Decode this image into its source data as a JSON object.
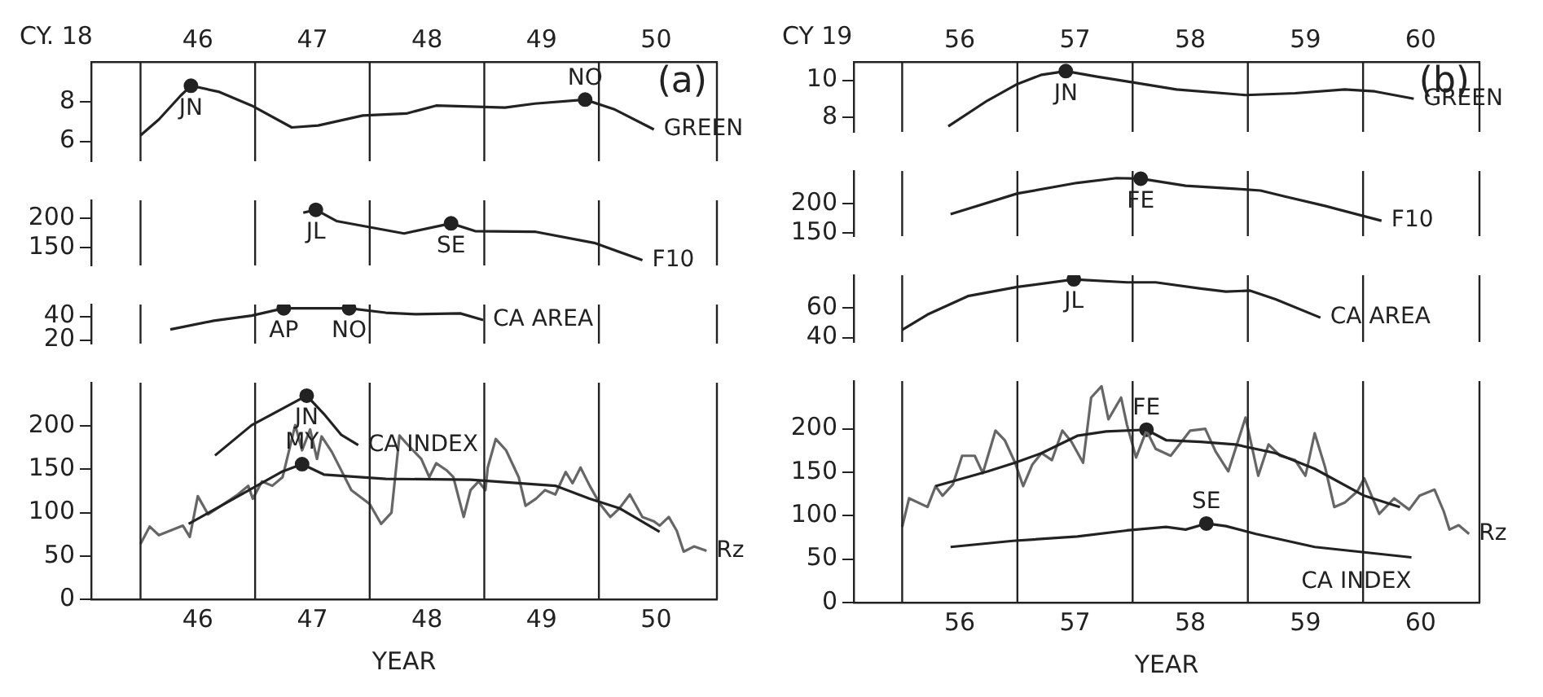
{
  "chart_data": [
    {
      "type": "line",
      "title": "(a)",
      "annotations": [
        "CY. 18"
      ],
      "tick_labels": "y",
      "xlim": [
        45.57,
        51.03
      ],
      "x2lim": [
        45.57,
        51.03
      ],
      "x2ticks": [
        {
          "value": 46.5,
          "label": "46"
        },
        {
          "value": 47.5,
          "label": "47"
        },
        {
          "value": 48.5,
          "label": "48"
        },
        {
          "value": 49.5,
          "label": "49"
        },
        {
          "value": 50.5,
          "label": "50"
        }
      ],
      "ylim": [
        5,
        10
      ],
      "yticks": [
        6,
        8
      ],
      "ref_lines": [
        {
          "axis": "x",
          "value": 46
        },
        {
          "axis": "x",
          "value": 47
        },
        {
          "axis": "x",
          "value": 48
        },
        {
          "axis": "x",
          "value": 49
        },
        {
          "axis": "x",
          "value": 50
        }
      ],
      "series": [
        {
          "name": "GREEN",
          "color": "#222222",
          "x": [
            46.0,
            46.16,
            46.35,
            46.44,
            46.68,
            46.97,
            47.32,
            47.55,
            47.94,
            48.32,
            48.58,
            49.18,
            49.44,
            49.88,
            50.14,
            50.48
          ],
          "values": [
            6.3,
            7.1,
            8.3,
            8.8,
            8.5,
            7.8,
            6.7,
            6.8,
            7.3,
            7.4,
            7.8,
            7.7,
            7.9,
            8.1,
            7.6,
            6.6
          ]
        },
        {
          "type": "scatter",
          "name": "JN",
          "color": "#222222",
          "x": [
            46.44
          ],
          "values": [
            8.8
          ]
        },
        {
          "type": "scatter",
          "name": "NO",
          "color": "#222222",
          "x": [
            49.88
          ],
          "values": [
            8.1
          ]
        }
      ]
    },
    {
      "type": "line",
      "tick_labels": "y",
      "xlim": [
        45.57,
        51.03
      ],
      "ylim": [
        120,
        230
      ],
      "yticks": [
        150,
        200
      ],
      "ref_lines": [
        {
          "axis": "x",
          "value": 46
        },
        {
          "axis": "x",
          "value": 47
        },
        {
          "axis": "x",
          "value": 48
        },
        {
          "axis": "x",
          "value": 49
        },
        {
          "axis": "x",
          "value": 50
        }
      ],
      "series": [
        {
          "name": "F10",
          "color": "#222222",
          "x": [
            47.42,
            47.53,
            47.71,
            48.3,
            48.71,
            48.92,
            49.44,
            49.96,
            50.38
          ],
          "values": [
            209,
            214,
            195,
            174,
            191,
            178,
            177,
            158,
            129
          ]
        },
        {
          "type": "scatter",
          "name": "JL",
          "color": "#222222",
          "x": [
            47.53
          ],
          "values": [
            214
          ]
        },
        {
          "type": "scatter",
          "name": "SE",
          "color": "#222222",
          "x": [
            48.71
          ],
          "values": [
            191
          ]
        }
      ]
    },
    {
      "type": "line",
      "tick_labels": "y",
      "xlim": [
        45.57,
        51.03
      ],
      "ylim": [
        17,
        50
      ],
      "yticks": [
        20,
        40
      ],
      "ref_lines": [
        {
          "axis": "x",
          "value": 46
        },
        {
          "axis": "x",
          "value": 47
        },
        {
          "axis": "x",
          "value": 48
        },
        {
          "axis": "x",
          "value": 49
        },
        {
          "axis": "x",
          "value": 50
        }
      ],
      "series": [
        {
          "name": "CA AREA",
          "color": "#222222",
          "x": [
            46.26,
            46.64,
            46.97,
            47.25,
            47.82,
            48.14,
            48.4,
            48.79,
            48.99
          ],
          "values": [
            28.9,
            36.3,
            40.6,
            46.8,
            46.8,
            43.1,
            41.9,
            42.5,
            36.9
          ]
        },
        {
          "type": "scatter",
          "name": "AP",
          "color": "#222222",
          "x": [
            47.25
          ],
          "values": [
            46.8
          ]
        },
        {
          "type": "scatter",
          "name": "NO",
          "color": "#222222",
          "x": [
            47.82
          ],
          "values": [
            46.8
          ]
        }
      ]
    },
    {
      "type": "line",
      "xlabel": "YEAR",
      "xlim": [
        45.57,
        51.03
      ],
      "xticks": [
        {
          "value": 46.5,
          "label": "46"
        },
        {
          "value": 47.5,
          "label": "47"
        },
        {
          "value": 48.5,
          "label": "48"
        },
        {
          "value": 49.5,
          "label": "49"
        },
        {
          "value": 50.5,
          "label": "50"
        }
      ],
      "ylim": [
        0,
        250
      ],
      "yticks": [
        0,
        50,
        100,
        150,
        200
      ],
      "ref_lines": [
        {
          "axis": "x",
          "value": 46
        },
        {
          "axis": "x",
          "value": 47
        },
        {
          "axis": "x",
          "value": 48
        },
        {
          "axis": "x",
          "value": 49
        },
        {
          "axis": "x",
          "value": 50
        }
      ],
      "series": [
        {
          "name": "CA INDEX",
          "color": "#222222",
          "x": [
            46.65,
            46.97,
            47.45,
            47.6,
            47.75,
            47.9
          ],
          "values": [
            166,
            201,
            235,
            214,
            190,
            178
          ]
        },
        {
          "color": "#222222",
          "x": [
            46.42,
            46.84,
            47.23,
            47.41,
            47.6,
            48.14,
            48.88,
            49.62,
            49.92,
            50.18,
            50.53
          ],
          "values": [
            87,
            118,
            147,
            156,
            144,
            139,
            138,
            131,
            116,
            105,
            78
          ]
        },
        {
          "name": "Rz",
          "color": "#666666",
          "x": [
            46.0,
            46.08,
            46.16,
            46.37,
            46.43,
            46.5,
            46.59,
            46.85,
            46.94,
            46.98,
            47.06,
            47.15,
            47.24,
            47.35,
            47.41,
            47.48,
            47.54,
            47.58,
            47.67,
            47.84,
            48.0,
            48.1,
            48.19,
            48.26,
            48.32,
            48.45,
            48.52,
            48.58,
            48.67,
            48.73,
            48.82,
            48.88,
            48.95,
            49.01,
            49.03,
            49.1,
            49.19,
            49.3,
            49.36,
            49.45,
            49.53,
            49.62,
            49.71,
            49.77,
            49.84,
            49.92,
            50.01,
            50.1,
            50.18,
            50.27,
            50.38,
            50.48,
            50.53,
            50.61,
            50.68,
            50.74,
            50.83,
            50.94
          ],
          "values": [
            64,
            84,
            74,
            85,
            72,
            119,
            98,
            121,
            131,
            116,
            136,
            131,
            141,
            201,
            172,
            196,
            162,
            188,
            170,
            126,
            110,
            87,
            100,
            189,
            180,
            162,
            141,
            157,
            149,
            141,
            95,
            126,
            136,
            126,
            152,
            185,
            172,
            141,
            108,
            116,
            126,
            121,
            147,
            134,
            152,
            131,
            110,
            95,
            105,
            121,
            95,
            90,
            85,
            95,
            79,
            55,
            61,
            56
          ]
        },
        {
          "type": "scatter",
          "name": "JN",
          "color": "#222222",
          "x": [
            47.45
          ],
          "values": [
            235
          ]
        },
        {
          "type": "scatter",
          "name": "MY",
          "color": "#222222",
          "x": [
            47.41
          ],
          "values": [
            156
          ]
        }
      ]
    },
    {
      "type": "line",
      "title": "(b)",
      "annotations": [
        "CY 19"
      ],
      "tick_labels": "y",
      "xlim": [
        55.58,
        61.01
      ],
      "x2lim": [
        55.58,
        61.01
      ],
      "x2ticks": [
        {
          "value": 56.5,
          "label": "56"
        },
        {
          "value": 57.5,
          "label": "57"
        },
        {
          "value": 58.5,
          "label": "58"
        },
        {
          "value": 59.5,
          "label": "59"
        },
        {
          "value": 60.5,
          "label": "60"
        }
      ],
      "ylim": [
        7.2,
        11
      ],
      "yticks": [
        8,
        10
      ],
      "ref_lines": [
        {
          "axis": "x",
          "value": 56
        },
        {
          "axis": "x",
          "value": 57
        },
        {
          "axis": "x",
          "value": 58
        },
        {
          "axis": "x",
          "value": 59
        },
        {
          "axis": "x",
          "value": 60
        }
      ],
      "series": [
        {
          "name": "GREEN",
          "color": "#222222",
          "x": [
            56.4,
            56.74,
            57.0,
            57.21,
            57.42,
            57.69,
            57.99,
            58.38,
            58.98,
            59.41,
            59.84,
            60.1,
            60.44
          ],
          "values": [
            7.5,
            8.9,
            9.8,
            10.3,
            10.5,
            10.2,
            9.9,
            9.5,
            9.2,
            9.3,
            9.5,
            9.4,
            9.0
          ]
        },
        {
          "type": "scatter",
          "name": "JN",
          "color": "#222222",
          "x": [
            57.42
          ],
          "values": [
            10.5
          ]
        }
      ]
    },
    {
      "type": "line",
      "tick_labels": "y",
      "xlim": [
        55.58,
        61.01
      ],
      "ylim": [
        145,
        255
      ],
      "yticks": [
        150,
        200
      ],
      "ref_lines": [
        {
          "axis": "x",
          "value": 56
        },
        {
          "axis": "x",
          "value": 57
        },
        {
          "axis": "x",
          "value": 58
        },
        {
          "axis": "x",
          "value": 59
        },
        {
          "axis": "x",
          "value": 60
        }
      ],
      "series": [
        {
          "name": "F10",
          "color": "#222222",
          "x": [
            56.42,
            57.0,
            57.52,
            57.86,
            58.07,
            58.46,
            58.89,
            59.11,
            59.32,
            59.67,
            60.16
          ],
          "values": [
            182,
            217,
            235,
            243,
            242,
            230,
            225,
            222,
            212,
            196,
            171
          ]
        },
        {
          "type": "scatter",
          "name": "FE",
          "color": "#222222",
          "x": [
            58.07
          ],
          "values": [
            242
          ]
        }
      ]
    },
    {
      "type": "line",
      "tick_labels": "y",
      "xlim": [
        55.58,
        61.01
      ],
      "ylim": [
        37,
        82
      ],
      "yticks": [
        40,
        60
      ],
      "ref_lines": [
        {
          "axis": "x",
          "value": 56
        },
        {
          "axis": "x",
          "value": 57
        },
        {
          "axis": "x",
          "value": 58
        },
        {
          "axis": "x",
          "value": 59
        },
        {
          "axis": "x",
          "value": 60
        }
      ],
      "series": [
        {
          "name": "CA AREA",
          "color": "#222222",
          "x": [
            56.0,
            56.22,
            56.57,
            57.0,
            57.49,
            57.95,
            58.2,
            58.59,
            58.81,
            59.02,
            59.24,
            59.63
          ],
          "values": [
            45.1,
            55.5,
            67.9,
            74.1,
            79.2,
            77.2,
            77.2,
            73.0,
            71.0,
            71.6,
            65.8,
            53.4
          ]
        },
        {
          "type": "scatter",
          "name": "JL",
          "color": "#222222",
          "x": [
            57.49
          ],
          "values": [
            79.2
          ]
        }
      ]
    },
    {
      "type": "line",
      "xlabel": "YEAR",
      "xlim": [
        55.58,
        61.01
      ],
      "xticks": [
        {
          "value": 56.5,
          "label": "56"
        },
        {
          "value": 57.5,
          "label": "57"
        },
        {
          "value": 58.5,
          "label": "58"
        },
        {
          "value": 59.5,
          "label": "59"
        },
        {
          "value": 60.5,
          "label": "60"
        }
      ],
      "ylim": [
        0,
        255
      ],
      "yticks": [
        0,
        50,
        100,
        150,
        200
      ],
      "ref_lines": [
        {
          "axis": "x",
          "value": 56
        },
        {
          "axis": "x",
          "value": 57
        },
        {
          "axis": "x",
          "value": 58
        },
        {
          "axis": "x",
          "value": 59
        },
        {
          "axis": "x",
          "value": 60
        }
      ],
      "series": [
        {
          "name": "CA INDEX",
          "color": "#222222",
          "x": [
            56.42,
            56.96,
            57.52,
            57.95,
            58.29,
            58.46,
            58.64,
            58.81,
            59.07,
            59.58,
            60.42
          ],
          "values": [
            64,
            71,
            76,
            83,
            87,
            84,
            91,
            88,
            79,
            64,
            52
          ]
        },
        {
          "color": "#222222",
          "x": [
            56.29,
            56.74,
            56.98,
            57.21,
            57.52,
            57.77,
            58.12,
            58.29,
            58.59,
            58.89,
            59.24,
            59.58,
            60.01,
            60.32
          ],
          "values": [
            134,
            151,
            161,
            172,
            192,
            197,
            199,
            187,
            185,
            182,
            172,
            154,
            123,
            110
          ]
        },
        {
          "name": "Rz",
          "color": "#666666",
          "x": [
            56.0,
            56.06,
            56.22,
            56.29,
            56.35,
            56.44,
            56.52,
            56.63,
            56.7,
            56.81,
            56.89,
            56.98,
            57.05,
            57.13,
            57.21,
            57.3,
            57.39,
            57.47,
            57.57,
            57.64,
            57.73,
            57.79,
            57.9,
            57.95,
            58.03,
            58.12,
            58.2,
            58.33,
            58.5,
            58.63,
            58.72,
            58.83,
            58.98,
            59.09,
            59.18,
            59.28,
            59.41,
            59.5,
            59.58,
            59.67,
            59.75,
            59.84,
            59.95,
            60.01,
            60.14,
            60.27,
            60.4,
            60.49,
            60.62,
            60.7,
            60.75,
            60.83,
            60.92
          ],
          "values": [
            87,
            120,
            110,
            134,
            123,
            136,
            169,
            169,
            149,
            198,
            187,
            161,
            134,
            159,
            172,
            164,
            198,
            185,
            161,
            236,
            249,
            211,
            236,
            205,
            167,
            198,
            177,
            169,
            198,
            200,
            174,
            151,
            213,
            146,
            182,
            169,
            164,
            146,
            195,
            156,
            110,
            115,
            128,
            143,
            102,
            120,
            107,
            123,
            130,
            105,
            84,
            89,
            79
          ]
        },
        {
          "type": "scatter",
          "name": "FE",
          "color": "#222222",
          "x": [
            58.12
          ],
          "values": [
            199
          ]
        },
        {
          "type": "scatter",
          "name": "SE",
          "color": "#222222",
          "x": [
            58.64
          ],
          "values": [
            91
          ]
        }
      ]
    }
  ]
}
